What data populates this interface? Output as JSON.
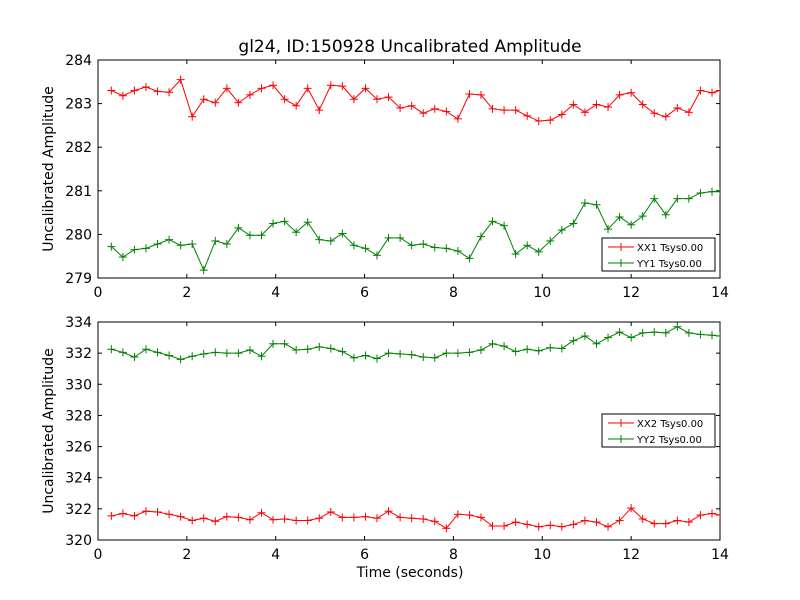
{
  "figure": {
    "title": "gl24, ID:150928 Uncalibrated Amplitude",
    "xlabel": "Time (seconds)"
  },
  "chart_data": [
    {
      "type": "line",
      "title": "gl24, ID:150928 Uncalibrated Amplitude",
      "xlabel": "",
      "ylabel": "Uncalibrated Amplitude",
      "xlim": [
        0,
        14
      ],
      "ylim": [
        279,
        284
      ],
      "xticks": [
        "0",
        "2",
        "4",
        "6",
        "8",
        "10",
        "12",
        "14"
      ],
      "yticks": [
        "279",
        "280",
        "281",
        "282",
        "283",
        "284"
      ],
      "legend_position": "lower-right",
      "x": [
        0.3,
        0.56,
        0.82,
        1.08,
        1.34,
        1.6,
        1.86,
        2.12,
        2.38,
        2.64,
        2.9,
        3.16,
        3.42,
        3.68,
        3.94,
        4.2,
        4.46,
        4.72,
        4.98,
        5.24,
        5.5,
        5.76,
        6.02,
        6.28,
        6.54,
        6.8,
        7.06,
        7.32,
        7.58,
        7.84,
        8.1,
        8.36,
        8.62,
        8.88,
        9.14,
        9.4,
        9.66,
        9.92,
        10.18,
        10.44,
        10.7,
        10.96,
        11.22,
        11.48,
        11.74,
        12.0,
        12.26,
        12.52,
        12.78,
        13.04,
        13.3,
        13.56,
        13.82,
        14.0
      ],
      "series": [
        {
          "name": "XX1 Tsys0.00",
          "color": "#ff0000",
          "values": [
            283.3,
            283.18,
            283.3,
            283.38,
            283.28,
            283.26,
            283.55,
            282.7,
            283.1,
            283.02,
            283.35,
            283.02,
            283.2,
            283.35,
            283.42,
            283.1,
            282.95,
            283.35,
            282.85,
            283.42,
            283.4,
            283.1,
            283.35,
            283.1,
            283.15,
            282.9,
            282.95,
            282.78,
            282.88,
            282.82,
            282.65,
            283.22,
            283.2,
            282.88,
            282.85,
            282.85,
            282.72,
            282.6,
            282.62,
            282.75,
            282.98,
            282.8,
            282.98,
            282.92,
            283.2,
            283.25,
            282.98,
            282.78,
            282.7,
            282.9,
            282.8,
            283.3,
            283.25,
            283.3
          ]
        },
        {
          "name": "YY1 Tsys0.00",
          "color": "#008000",
          "values": [
            279.72,
            279.48,
            279.65,
            279.68,
            279.78,
            279.88,
            279.75,
            279.78,
            279.18,
            279.85,
            279.78,
            280.15,
            279.98,
            279.98,
            280.25,
            280.3,
            280.05,
            280.28,
            279.88,
            279.85,
            280.02,
            279.75,
            279.68,
            279.52,
            279.92,
            279.92,
            279.75,
            279.78,
            279.7,
            279.68,
            279.62,
            279.45,
            279.95,
            280.3,
            280.2,
            279.55,
            279.75,
            279.6,
            279.85,
            280.1,
            280.25,
            280.72,
            280.68,
            280.12,
            280.4,
            280.22,
            280.42,
            280.82,
            280.45,
            280.82,
            280.82,
            280.95,
            280.98,
            280.98
          ]
        }
      ]
    },
    {
      "type": "line",
      "title": "",
      "xlabel": "Time (seconds)",
      "ylabel": "Uncalibrated Amplitude",
      "xlim": [
        0,
        14
      ],
      "ylim": [
        320,
        334
      ],
      "xticks": [
        "0",
        "2",
        "4",
        "6",
        "8",
        "10",
        "12",
        "14"
      ],
      "yticks": [
        "320",
        "322",
        "324",
        "326",
        "328",
        "330",
        "332",
        "334"
      ],
      "legend_position": "center-right",
      "x": [
        0.3,
        0.56,
        0.82,
        1.08,
        1.34,
        1.6,
        1.86,
        2.12,
        2.38,
        2.64,
        2.9,
        3.16,
        3.42,
        3.68,
        3.94,
        4.2,
        4.46,
        4.72,
        4.98,
        5.24,
        5.5,
        5.76,
        6.02,
        6.28,
        6.54,
        6.8,
        7.06,
        7.32,
        7.58,
        7.84,
        8.1,
        8.36,
        8.62,
        8.88,
        9.14,
        9.4,
        9.66,
        9.92,
        10.18,
        10.44,
        10.7,
        10.96,
        11.22,
        11.48,
        11.74,
        12.0,
        12.26,
        12.52,
        12.78,
        13.04,
        13.3,
        13.56,
        13.82,
        14.0
      ],
      "series": [
        {
          "name": "XX2 Tsys0.00",
          "color": "#ff0000",
          "values": [
            321.55,
            321.7,
            321.55,
            321.85,
            321.8,
            321.65,
            321.5,
            321.25,
            321.4,
            321.2,
            321.5,
            321.45,
            321.3,
            321.75,
            321.3,
            321.35,
            321.25,
            321.25,
            321.4,
            321.8,
            321.45,
            321.45,
            321.5,
            321.4,
            321.85,
            321.45,
            321.4,
            321.35,
            321.2,
            320.75,
            321.65,
            321.6,
            321.45,
            320.9,
            320.9,
            321.15,
            321.0,
            320.85,
            320.95,
            320.85,
            321.0,
            321.25,
            321.15,
            320.85,
            321.25,
            322.05,
            321.35,
            321.05,
            321.05,
            321.25,
            321.15,
            321.6,
            321.7,
            321.6
          ]
        },
        {
          "name": "YY2 Tsys0.00",
          "color": "#008000",
          "values": [
            332.25,
            332.05,
            331.75,
            332.25,
            332.05,
            331.85,
            331.6,
            331.8,
            331.95,
            332.05,
            332.0,
            332.0,
            332.2,
            331.8,
            332.6,
            332.6,
            332.2,
            332.25,
            332.4,
            332.3,
            332.1,
            331.7,
            331.85,
            331.65,
            332.0,
            331.95,
            331.9,
            331.75,
            331.7,
            332.0,
            332.0,
            332.05,
            332.2,
            332.6,
            332.45,
            332.1,
            332.25,
            332.15,
            332.35,
            332.3,
            332.8,
            333.1,
            332.6,
            333.0,
            333.35,
            333.0,
            333.3,
            333.35,
            333.3,
            333.7,
            333.3,
            333.2,
            333.15,
            333.1
          ]
        }
      ]
    }
  ]
}
